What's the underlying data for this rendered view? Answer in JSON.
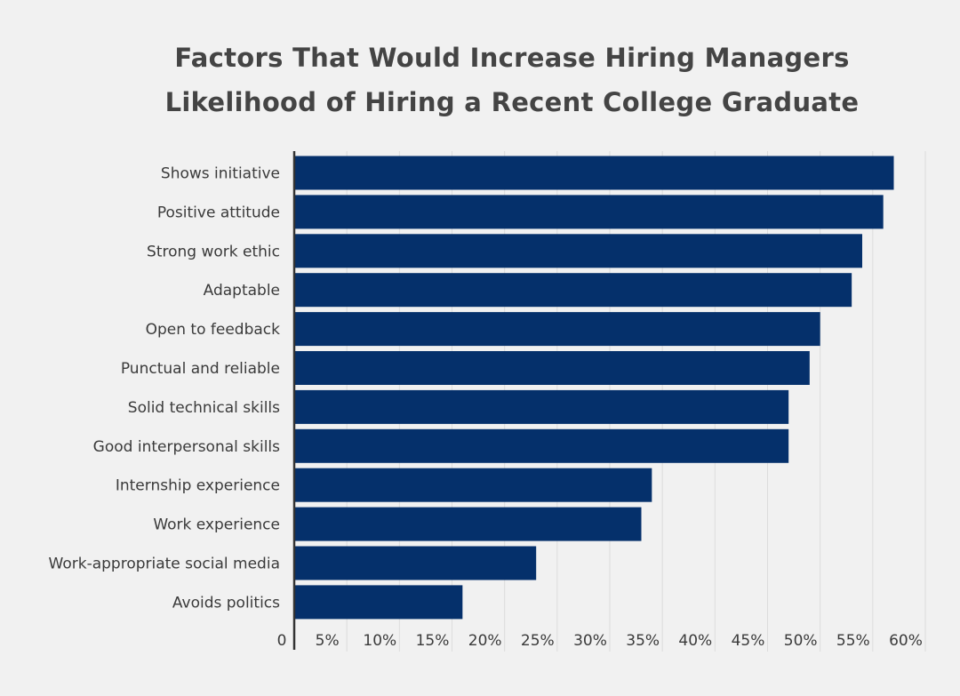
{
  "chart_data": {
    "type": "bar",
    "orientation": "horizontal",
    "title_lines": [
      "Factors That Would Increase Hiring Managers",
      "Likelihood of Hiring a Recent College Graduate"
    ],
    "categories": [
      "Shows initiative",
      "Positive attitude",
      "Strong work ethic",
      "Adaptable",
      "Open to feedback",
      "Punctual and reliable",
      "Solid technical skills",
      "Good interpersonal skills",
      "Internship experience",
      "Work experience",
      "Work-appropriate social media",
      "Avoids politics"
    ],
    "values": [
      57,
      56,
      54,
      53,
      50,
      49,
      47,
      47,
      34,
      33,
      23,
      16
    ],
    "xlim": [
      0,
      60
    ],
    "x_ticks": [
      0,
      5,
      10,
      15,
      20,
      25,
      30,
      35,
      40,
      45,
      50,
      55,
      60
    ],
    "x_tick_labels": [
      "0",
      "5%",
      "10%",
      "15%",
      "20%",
      "25%",
      "30%",
      "35%",
      "40%",
      "45%",
      "50%",
      "55%",
      "60%"
    ],
    "bar_color": "#05306b",
    "grid": "vertical",
    "legend": "none"
  }
}
